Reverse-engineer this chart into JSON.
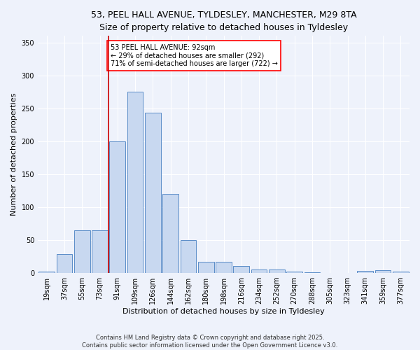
{
  "title_line1": "53, PEEL HALL AVENUE, TYLDESLEY, MANCHESTER, M29 8TA",
  "title_line2": "Size of property relative to detached houses in Tyldesley",
  "xlabel": "Distribution of detached houses by size in Tyldesley",
  "ylabel": "Number of detached properties",
  "categories": [
    "19sqm",
    "37sqm",
    "55sqm",
    "73sqm",
    "91sqm",
    "109sqm",
    "126sqm",
    "144sqm",
    "162sqm",
    "180sqm",
    "198sqm",
    "216sqm",
    "234sqm",
    "252sqm",
    "270sqm",
    "288sqm",
    "305sqm",
    "323sqm",
    "341sqm",
    "359sqm",
    "377sqm"
  ],
  "values": [
    2,
    29,
    65,
    65,
    200,
    275,
    243,
    120,
    50,
    17,
    17,
    11,
    5,
    5,
    2,
    1,
    0,
    0,
    3,
    4,
    2
  ],
  "bar_color": "#c8d8f0",
  "bar_edge_color": "#5b8dc8",
  "vline_color": "#cc0000",
  "vline_index": 4,
  "annotation_text": "53 PEEL HALL AVENUE: 92sqm\n← 29% of detached houses are smaller (292)\n71% of semi-detached houses are larger (722) →",
  "ylim": [
    0,
    360
  ],
  "yticks": [
    0,
    50,
    100,
    150,
    200,
    250,
    300,
    350
  ],
  "bg_color": "#eef2fb",
  "grid_color": "#ffffff",
  "footnote": "Contains HM Land Registry data © Crown copyright and database right 2025.\nContains public sector information licensed under the Open Government Licence v3.0.",
  "title_fontsize": 9,
  "subtitle_fontsize": 8.5,
  "axis_label_fontsize": 8,
  "tick_fontsize": 7,
  "annotation_fontsize": 7,
  "footnote_fontsize": 6
}
